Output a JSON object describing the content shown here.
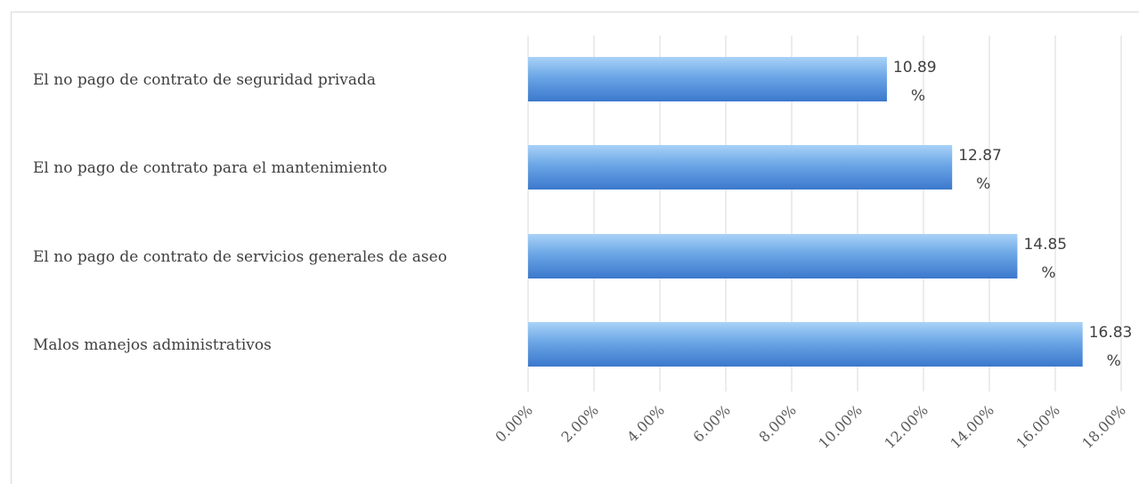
{
  "chart_data": {
    "type": "bar",
    "orientation": "horizontal",
    "categories": [
      "El no pago de contrato de seguridad privada",
      "El no pago de contrato para el mantenimiento",
      "El no pago de contrato de servicios generales de aseo",
      "Malos manejos administrativos"
    ],
    "values": [
      10.89,
      12.87,
      14.85,
      16.83
    ],
    "data_labels": [
      [
        "10.89",
        "%"
      ],
      [
        "12.87",
        "%"
      ],
      [
        "14.85",
        "%"
      ],
      [
        "16.83",
        "%"
      ]
    ],
    "x_ticks": [
      "0.00%",
      "2.00%",
      "4.00%",
      "6.00%",
      "8.00%",
      "10.00%",
      "12.00%",
      "14.00%",
      "16.00%",
      "18.00%"
    ],
    "xlim": [
      0,
      18
    ],
    "grid": true,
    "bar_color": "#4a86d8",
    "title": "",
    "xlabel": "",
    "ylabel": ""
  }
}
